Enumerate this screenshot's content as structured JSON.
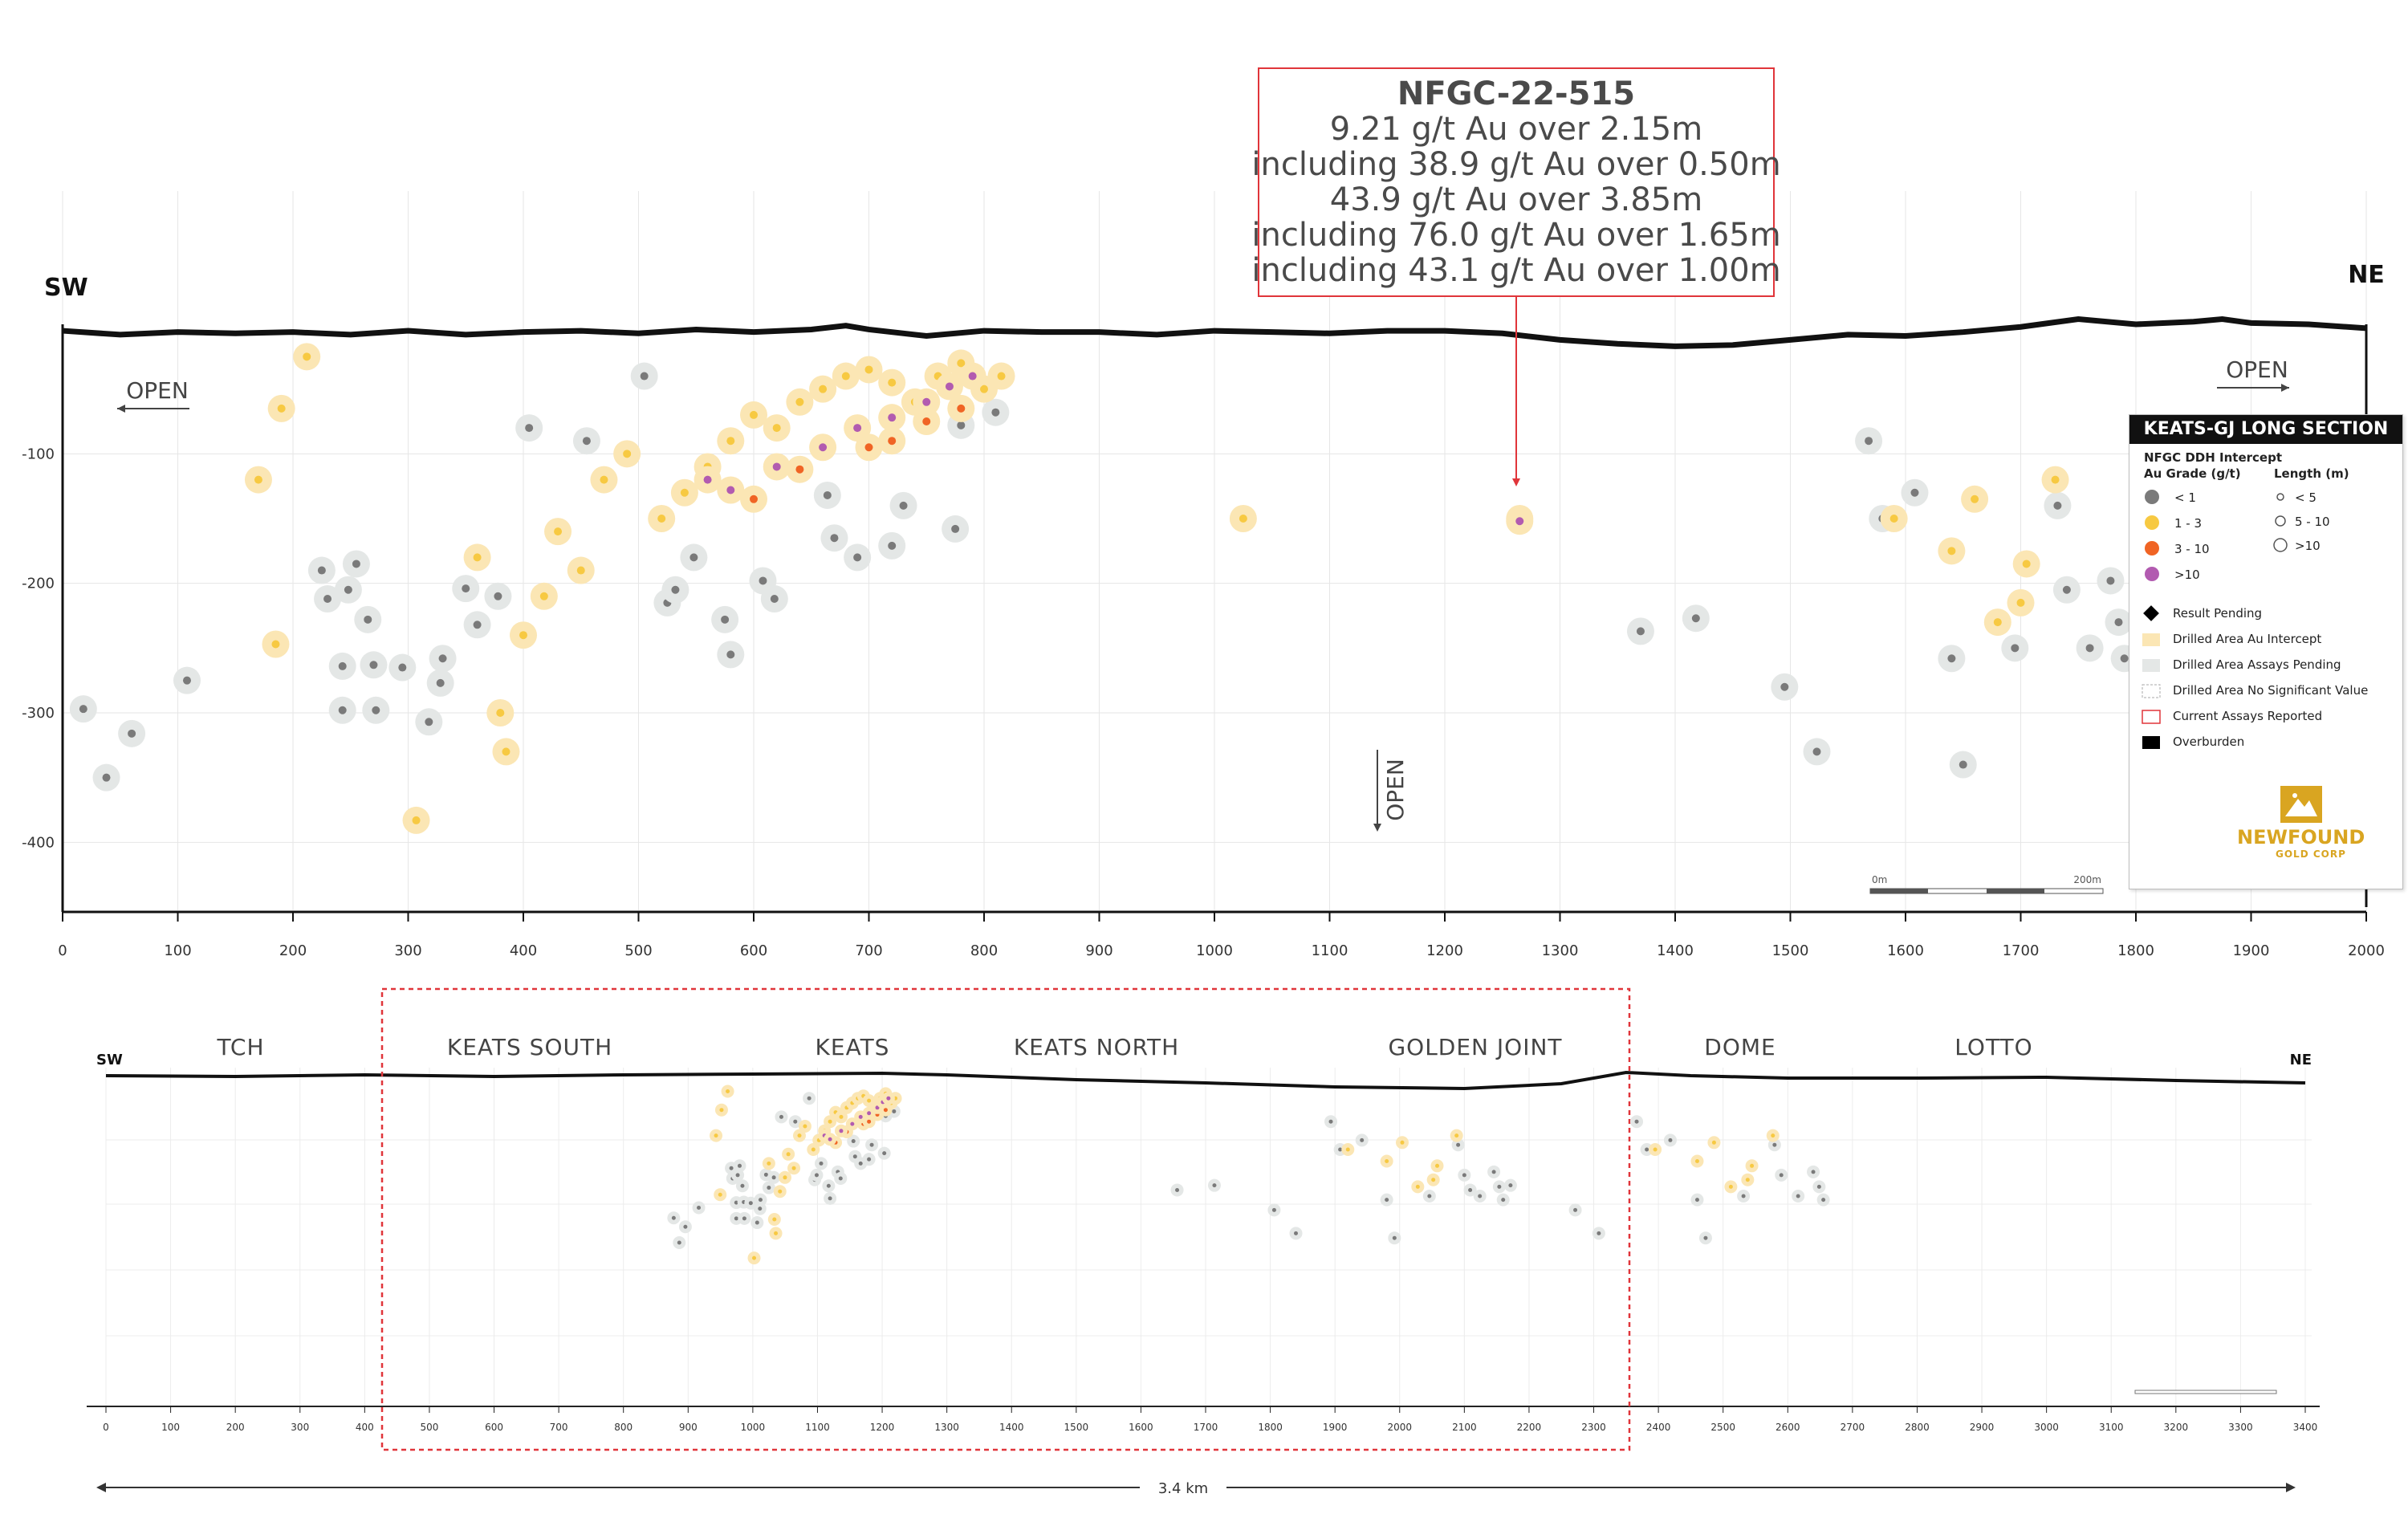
{
  "callout": {
    "lines": [
      "NFGC-22-515",
      "9.21 g/t Au over 2.15m",
      "including 38.9 g/t Au over 0.50m",
      "43.9 g/t Au over 3.85m",
      "including 76.0 g/t Au over 1.65m",
      "including 43.1 g/t Au over 1.00m"
    ]
  },
  "upper": {
    "sw": "SW",
    "ne": "NE",
    "open_left": "OPEN",
    "open_right": "OPEN",
    "open_down": "OPEN",
    "x_ticks": [
      0,
      100,
      200,
      300,
      400,
      500,
      600,
      700,
      800,
      900,
      1000,
      1100,
      1200,
      1300,
      1400,
      1500,
      1600,
      1700,
      1800,
      1900,
      2000
    ],
    "y_ticks": [
      "-100",
      "-200",
      "-300",
      "-400"
    ],
    "scale_start": "0m",
    "scale_end": "200m"
  },
  "legend": {
    "title": "KEATS-GJ LONG SECTION",
    "subtitle": "NFGC DDH Intercept",
    "grade_header": "Au Grade (g/t)",
    "length_header": "Length (m)",
    "grades": [
      {
        "label": "< 1",
        "color": "#7a7a7a"
      },
      {
        "label": "1 - 3",
        "color": "#f7c942"
      },
      {
        "label": "3 - 10",
        "color": "#f06424"
      },
      {
        "label": ">10",
        "color": "#b25bb0"
      }
    ],
    "lengths": [
      "< 5",
      "5 - 10",
      ">10"
    ],
    "items": [
      "Result Pending",
      "Drilled Area Au Intercept",
      "Drilled Area Assays Pending",
      "Drilled Area No Significant Value",
      "Current Assays Reported",
      "Overburden"
    ],
    "logo_line1a": "NEW",
    "logo_line1b": "FOUND",
    "logo_line2": "GOLD CORP",
    "colors": {
      "gold": "#d9a521",
      "pending_fill": "#e4e7e6",
      "au_fill": "#fbe6b4",
      "red": "#e0353a"
    }
  },
  "lower": {
    "sw": "SW",
    "ne": "NE",
    "zones": [
      "TCH",
      "KEATS SOUTH",
      "KEATS",
      "KEATS NORTH",
      "GOLDEN JOINT",
      "DOME",
      "LOTTO"
    ],
    "x_ticks": [
      0,
      100,
      200,
      300,
      400,
      500,
      600,
      700,
      800,
      900,
      1000,
      1100,
      1200,
      1300,
      1400,
      1500,
      1600,
      1700,
      1800,
      1900,
      2000,
      2100,
      2200,
      2300,
      2400,
      2500,
      2600,
      2700,
      2800,
      2900,
      3000,
      3100,
      3200,
      3300,
      3400
    ],
    "distance": "3.4 km"
  },
  "chart_data": {
    "type": "scatter",
    "xlabel": "",
    "ylabel": "",
    "xlim": [
      0,
      2000
    ],
    "ylim": [
      -450,
      0
    ],
    "grid": true,
    "highlighted_hole": {
      "name": "NFGC-22-515",
      "x": 1265,
      "y": -152,
      "grade_class": ">10"
    },
    "series": [
      {
        "name": "< 1",
        "points": [
          [
            18,
            -297
          ],
          [
            38,
            -350
          ],
          [
            60,
            -316
          ],
          [
            108,
            -275
          ],
          [
            225,
            -190
          ],
          [
            230,
            -212
          ],
          [
            255,
            -185
          ],
          [
            248,
            -205
          ],
          [
            265,
            -228
          ],
          [
            243,
            -264
          ],
          [
            243,
            -298
          ],
          [
            272,
            -298
          ],
          [
            270,
            -263
          ],
          [
            295,
            -265
          ],
          [
            328,
            -277
          ],
          [
            318,
            -307
          ],
          [
            330,
            -258
          ],
          [
            360,
            -232
          ],
          [
            350,
            -204
          ],
          [
            378,
            -210
          ],
          [
            405,
            -80
          ],
          [
            455,
            -90
          ],
          [
            505,
            -40
          ],
          [
            525,
            -215
          ],
          [
            532,
            -205
          ],
          [
            548,
            -180
          ],
          [
            575,
            -228
          ],
          [
            580,
            -255
          ],
          [
            608,
            -198
          ],
          [
            618,
            -212
          ],
          [
            664,
            -132
          ],
          [
            670,
            -165
          ],
          [
            690,
            -180
          ],
          [
            720,
            -171
          ],
          [
            730,
            -140
          ],
          [
            775,
            -158
          ],
          [
            780,
            -78
          ],
          [
            810,
            -68
          ],
          [
            1370,
            -237
          ],
          [
            1418,
            -227
          ],
          [
            1495,
            -280
          ],
          [
            1523,
            -330
          ],
          [
            1568,
            -90
          ],
          [
            1580,
            -150
          ],
          [
            1608,
            -130
          ],
          [
            1640,
            -258
          ],
          [
            1650,
            -340
          ],
          [
            1695,
            -250
          ],
          [
            1732,
            -140
          ],
          [
            1740,
            -205
          ],
          [
            1760,
            -250
          ],
          [
            1778,
            -198
          ],
          [
            1785,
            -230
          ],
          [
            1790,
            -258
          ]
        ]
      },
      {
        "name": "1 - 3",
        "points": [
          [
            170,
            -120
          ],
          [
            190,
            -65
          ],
          [
            212,
            -25
          ],
          [
            185,
            -247
          ],
          [
            307,
            -383
          ],
          [
            360,
            -180
          ],
          [
            380,
            -300
          ],
          [
            385,
            -330
          ],
          [
            400,
            -240
          ],
          [
            418,
            -210
          ],
          [
            430,
            -160
          ],
          [
            450,
            -190
          ],
          [
            470,
            -120
          ],
          [
            490,
            -100
          ],
          [
            520,
            -150
          ],
          [
            540,
            -130
          ],
          [
            560,
            -110
          ],
          [
            580,
            -90
          ],
          [
            600,
            -70
          ],
          [
            620,
            -80
          ],
          [
            640,
            -60
          ],
          [
            660,
            -50
          ],
          [
            680,
            -40
          ],
          [
            700,
            -35
          ],
          [
            720,
            -45
          ],
          [
            740,
            -60
          ],
          [
            760,
            -40
          ],
          [
            780,
            -30
          ],
          [
            800,
            -50
          ],
          [
            815,
            -40
          ],
          [
            1025,
            -150
          ],
          [
            1265,
            -150
          ],
          [
            1590,
            -150
          ],
          [
            1640,
            -175
          ],
          [
            1660,
            -135
          ],
          [
            1680,
            -230
          ],
          [
            1700,
            -215
          ],
          [
            1705,
            -185
          ],
          [
            1730,
            -120
          ]
        ]
      },
      {
        "name": "3 - 10",
        "points": [
          [
            600,
            -135
          ],
          [
            640,
            -112
          ],
          [
            700,
            -95
          ],
          [
            720,
            -90
          ],
          [
            750,
            -75
          ],
          [
            780,
            -65
          ]
        ]
      },
      {
        "name": ">10",
        "points": [
          [
            560,
            -120
          ],
          [
            580,
            -128
          ],
          [
            620,
            -110
          ],
          [
            660,
            -95
          ],
          [
            690,
            -80
          ],
          [
            720,
            -72
          ],
          [
            750,
            -60
          ],
          [
            770,
            -48
          ],
          [
            790,
            -40
          ],
          [
            1265,
            -152
          ]
        ]
      }
    ]
  }
}
